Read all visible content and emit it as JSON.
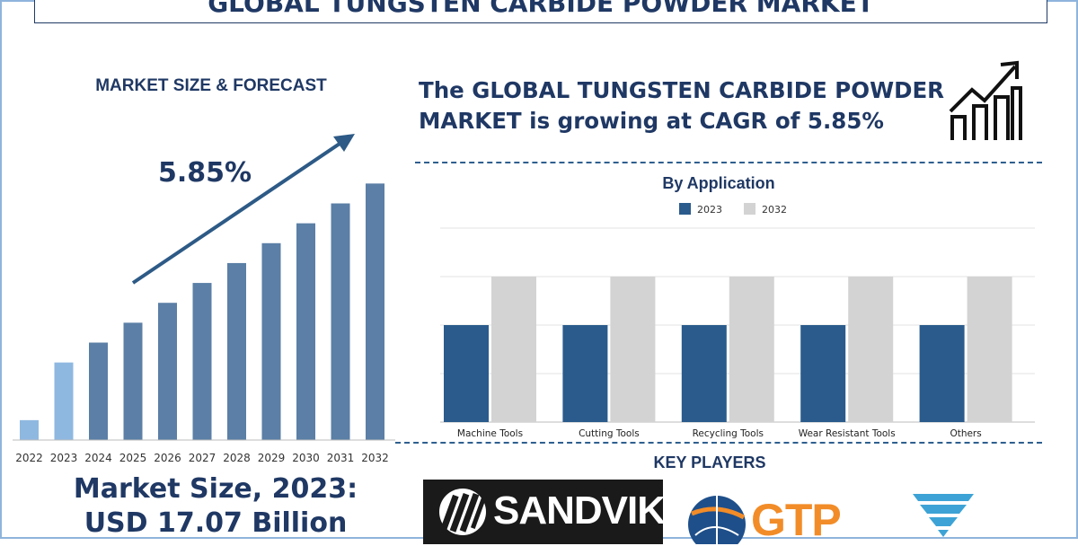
{
  "title": "GLOBAL TUNGSTEN CARBIDE POWDER MARKET",
  "left_panel": {
    "heading": "MARKET SIZE & FORECAST",
    "cagr_label": "5.85%",
    "market_size_line1": "Market Size, 2023:",
    "market_size_line2": "USD 17.07 Billion"
  },
  "headline_line1": "The GLOBAL TUNGSTEN CARBIDE POWDER",
  "headline_line2": "MARKET is growing at CAGR of 5.85%",
  "key_players": {
    "heading": "KEY PLAYERS",
    "logos": [
      {
        "name": "SANDVIK",
        "icon": "sandvik-logo"
      },
      {
        "name": "GTP",
        "icon": "gtp-logo"
      },
      {
        "name": "",
        "icon": "blue-chevron-logo"
      }
    ]
  },
  "icons": {
    "growth": "growth-bar-chart-arrow-icon"
  },
  "colors": {
    "navy": "#1f3864",
    "forecast_bar": "#5b7fa6",
    "highlight_bar": "#8fb8e0",
    "series_2023": "#2a5b8c",
    "series_2032": "#d3d3d3",
    "gtp_orange": "#f28c28"
  },
  "chart_data": [
    {
      "type": "bar",
      "categories": [
        "2022",
        "2023",
        "2024",
        "2025",
        "2026",
        "2027",
        "2028",
        "2029",
        "2030",
        "2031",
        "2032"
      ],
      "values": [
        1.0,
        3.9,
        4.9,
        5.9,
        6.9,
        7.9,
        8.9,
        9.9,
        10.9,
        11.9,
        12.9
      ],
      "highlight": [
        "2022",
        "2023"
      ],
      "ylim": [
        0,
        14
      ],
      "annotation": "5.85%",
      "trend_arrow": true,
      "grid": false,
      "title": "MARKET SIZE & FORECAST"
    },
    {
      "type": "bar",
      "title": "By Application",
      "categories": [
        "Machine Tools",
        "Cutting Tools",
        "Recycling Tools",
        "Wear Resistant Tools",
        "Others"
      ],
      "series": [
        {
          "name": "2023",
          "values": [
            2,
            2,
            2,
            2,
            2
          ]
        },
        {
          "name": "2032",
          "values": [
            3,
            3,
            3,
            3,
            3
          ]
        }
      ],
      "ylim": [
        0,
        4
      ],
      "grid": true,
      "legend": "top-center"
    }
  ]
}
